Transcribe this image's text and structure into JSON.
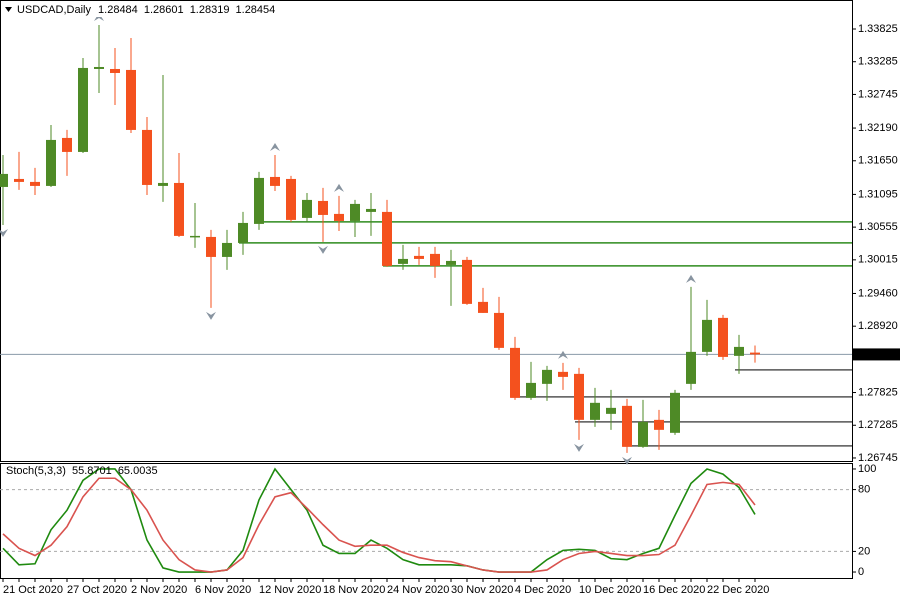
{
  "chart_data": [
    {
      "type": "candlestick",
      "title": "USDCAD,Daily",
      "categories": [
        "21 Oct 2020",
        null,
        null,
        null,
        "27 Oct 2020",
        null,
        null,
        null,
        "2 Nov 2020",
        null,
        null,
        null,
        "6 Nov 2020",
        null,
        null,
        null,
        "12 Nov 2020",
        null,
        null,
        null,
        "18 Nov 2020",
        null,
        null,
        null,
        "24 Nov 2020",
        null,
        null,
        null,
        "30 Nov 2020",
        null,
        null,
        null,
        "4 Dec 2020",
        null,
        null,
        null,
        "10 Dec 2020",
        null,
        null,
        null,
        "16 Dec 2020",
        null,
        null,
        null,
        "22 Dec 2020",
        null,
        null,
        null
      ],
      "open": [
        1.31218,
        1.3135,
        1.31301,
        1.31235,
        1.32027,
        1.31796,
        1.33165,
        1.33165,
        1.33149,
        1.32159,
        1.31235,
        1.31284,
        1.30393,
        1.30393,
        1.30063,
        1.30294,
        1.30608,
        1.31383,
        1.3135,
        1.30707,
        1.30987,
        1.30773,
        1.30657,
        1.30806,
        1.30806,
        1.29948,
        1.3008,
        1.30113,
        1.29931,
        1.30014,
        1.29321,
        1.29139,
        1.28562,
        1.27737,
        1.27968,
        1.28166,
        1.28133,
        1.27374,
        1.27473,
        1.27605,
        1.26929,
        1.27374,
        1.2716,
        1.27968,
        1.28496,
        1.29057,
        1.2843,
        1.28484
      ],
      "high": [
        1.31746,
        1.31796,
        1.31532,
        1.32241,
        1.32159,
        1.33347,
        1.33891,
        1.33512,
        1.33677,
        1.32373,
        1.33066,
        1.31779,
        1.30954,
        1.30509,
        1.30509,
        1.30806,
        1.31466,
        1.31746,
        1.314,
        1.31119,
        1.31202,
        1.3107,
        1.31004,
        1.31119,
        1.31004,
        1.30261,
        1.30228,
        1.30228,
        1.30179,
        1.30063,
        1.29552,
        1.29403,
        1.28743,
        1.28331,
        1.28265,
        1.28314,
        1.28232,
        1.27902,
        1.27869,
        1.27721,
        1.27704,
        1.27539,
        1.27869,
        1.29568,
        1.29354,
        1.29106,
        1.28776,
        1.28601
      ],
      "low": [
        1.30591,
        1.31169,
        1.31086,
        1.31218,
        1.314,
        1.31779,
        1.32769,
        1.32571,
        1.32109,
        1.31086,
        1.30971,
        1.30393,
        1.30212,
        1.29222,
        1.29849,
        1.30096,
        1.30509,
        1.31152,
        1.30641,
        1.30641,
        1.30311,
        1.30492,
        1.30393,
        1.3041,
        1.29898,
        1.29849,
        1.29931,
        1.29717,
        1.29255,
        1.29271,
        1.29139,
        1.28529,
        1.27704,
        1.27704,
        1.27688,
        1.27869,
        1.27044,
        1.27259,
        1.27209,
        1.2683,
        1.26912,
        1.26879,
        1.27127,
        1.27869,
        1.2843,
        1.28364,
        1.28133,
        1.28319
      ],
      "close": [
        1.31433,
        1.31301,
        1.31235,
        1.31994,
        1.31796,
        1.33182,
        1.33198,
        1.33099,
        1.32159,
        1.31251,
        1.31284,
        1.3041,
        1.3041,
        1.30063,
        1.30294,
        1.30624,
        1.31367,
        1.31235,
        1.30674,
        1.31004,
        1.30756,
        1.30657,
        1.30938,
        1.30855,
        1.29915,
        1.3003,
        1.3003,
        1.29915,
        1.29997,
        1.29288,
        1.29139,
        1.28562,
        1.27737,
        1.27984,
        1.28199,
        1.28083,
        1.27374,
        1.27655,
        1.27572,
        1.26929,
        1.27341,
        1.27209,
        1.2782,
        1.28496,
        1.29024,
        1.28413,
        1.28578,
        1.28454
      ],
      "up_color": "#4e8a26",
      "down_color": "#f4511e",
      "ylim": [
        1.26695,
        1.34254
      ],
      "yticks": [
        1.33825,
        1.33285,
        1.32745,
        {
          "value": 1.3219,
          "label": "1.32190"
        },
        {
          "value": 1.3165,
          "label": "1.31650"
        },
        1.31095,
        1.30555,
        1.30015,
        {
          "value": 1.2946,
          "label": "1.29460"
        },
        {
          "value": 1.2892,
          "label": "1.28920"
        },
        1.27825,
        1.27285,
        1.26745
      ],
      "levels": [
        {
          "value": 1.30641,
          "from": 16,
          "color": "#2e8b1e"
        },
        {
          "value": 1.30294,
          "from": 15,
          "color": "#2e8b1e"
        },
        {
          "value": 1.29915,
          "from": 24,
          "color": "#2e8b1e"
        },
        {
          "value": 1.28199,
          "from": 46,
          "color": "#555555"
        },
        {
          "value": 1.27754,
          "from": 32,
          "color": "#555555"
        },
        {
          "value": 1.27341,
          "from": 36,
          "color": "#555555"
        },
        {
          "value": 1.26945,
          "from": 39,
          "color": "#555555"
        }
      ],
      "fractals_up": [
        6,
        17,
        21,
        35,
        43
      ],
      "fractals_down": [
        0,
        13,
        20,
        36,
        39
      ]
    },
    {
      "type": "line",
      "title": "Stoch(5,3,3)",
      "series": [
        {
          "color": "#1f8a0f",
          "values": [
            23,
            7,
            8,
            41,
            60,
            89,
            100,
            100,
            80,
            31,
            4,
            0,
            0,
            0,
            2,
            21,
            70,
            100,
            80,
            60,
            26,
            18,
            18,
            31,
            23,
            12,
            7,
            7,
            7,
            6,
            2,
            0,
            0,
            0,
            12,
            21,
            22,
            21,
            13,
            12,
            18,
            23,
            55,
            86,
            100,
            95,
            82,
            55.8701
          ]
        },
        {
          "color": "#d9534f",
          "values": [
            37,
            23,
            16,
            26,
            44,
            73,
            91,
            91,
            80,
            60,
            31,
            12,
            2,
            0,
            2,
            14,
            46,
            73,
            77,
            62,
            46,
            31,
            25,
            26,
            26,
            19,
            14,
            11,
            10,
            6,
            2,
            0,
            0,
            0,
            2,
            12,
            18,
            20,
            18,
            16,
            16,
            17,
            26,
            55,
            85,
            87,
            85,
            65.0035
          ]
        }
      ],
      "ylim": [
        -5.8,
        105.8
      ],
      "yticks": [
        100,
        80,
        20,
        0
      ],
      "levels": [
        80,
        20
      ]
    }
  ]
}
